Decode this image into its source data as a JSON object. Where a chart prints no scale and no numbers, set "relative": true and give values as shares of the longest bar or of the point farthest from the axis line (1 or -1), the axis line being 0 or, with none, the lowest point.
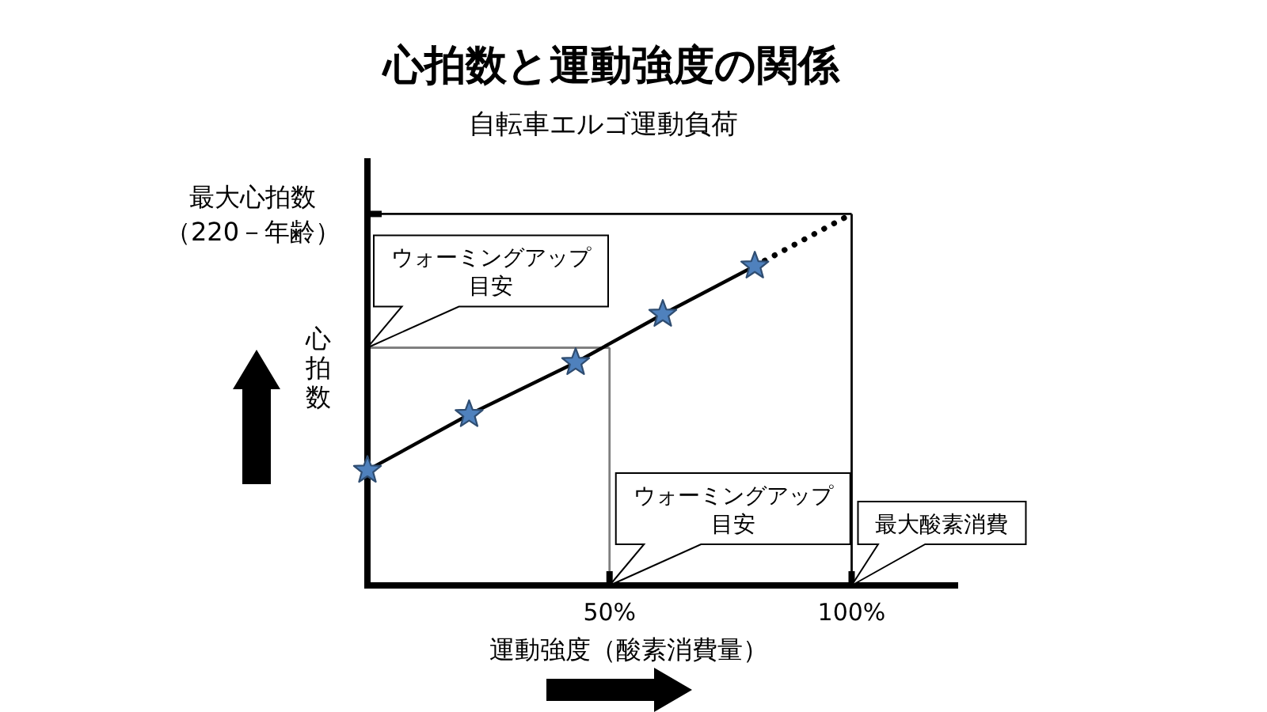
{
  "chart_data": {
    "type": "line",
    "title": "心拍数と運動強度の関係",
    "subtitle": "自転車エルゴ運動負荷",
    "xlabel": "運動強度（酸素消費量）",
    "ylabel": "心拍数",
    "relative": true,
    "xlim": [
      0,
      122
    ],
    "xticks": [
      {
        "value": 50,
        "label": "50%"
      },
      {
        "value": 100,
        "label": "100%"
      }
    ],
    "series": [
      {
        "type": "line",
        "color": "#000000",
        "x": [
          0,
          21,
          43,
          61,
          80
        ],
        "values": [
          0.31,
          0.46,
          0.6,
          0.73,
          0.86
        ]
      },
      {
        "type": "line",
        "color": "#000000",
        "line_style": "dotted",
        "x": [
          80,
          100
        ],
        "values": [
          0.86,
          1
        ]
      },
      {
        "type": "scatter",
        "color": "#4f81bd",
        "marker": "star",
        "x": [
          0,
          21,
          43,
          61,
          80
        ],
        "values": [
          0.31,
          0.46,
          0.6,
          0.73,
          0.86
        ]
      }
    ],
    "ref_lines": [
      {
        "axis": "y",
        "value": 1,
        "color": "#000000",
        "label": "最大心拍数（220－年齢）"
      },
      {
        "axis": "x",
        "value": 100,
        "color": "#000000",
        "label": "最大酸素消費"
      },
      {
        "axis": "y",
        "value": 0.64,
        "color": "#7f7f7f"
      },
      {
        "axis": "x",
        "value": 50,
        "color": "#7f7f7f"
      }
    ],
    "annotations": [
      {
        "text": "ウォーミングアップ目安",
        "x": 0,
        "y": 0.64
      },
      {
        "text": "ウォーミングアップ目安",
        "x": 50,
        "y": 0
      }
    ]
  }
}
